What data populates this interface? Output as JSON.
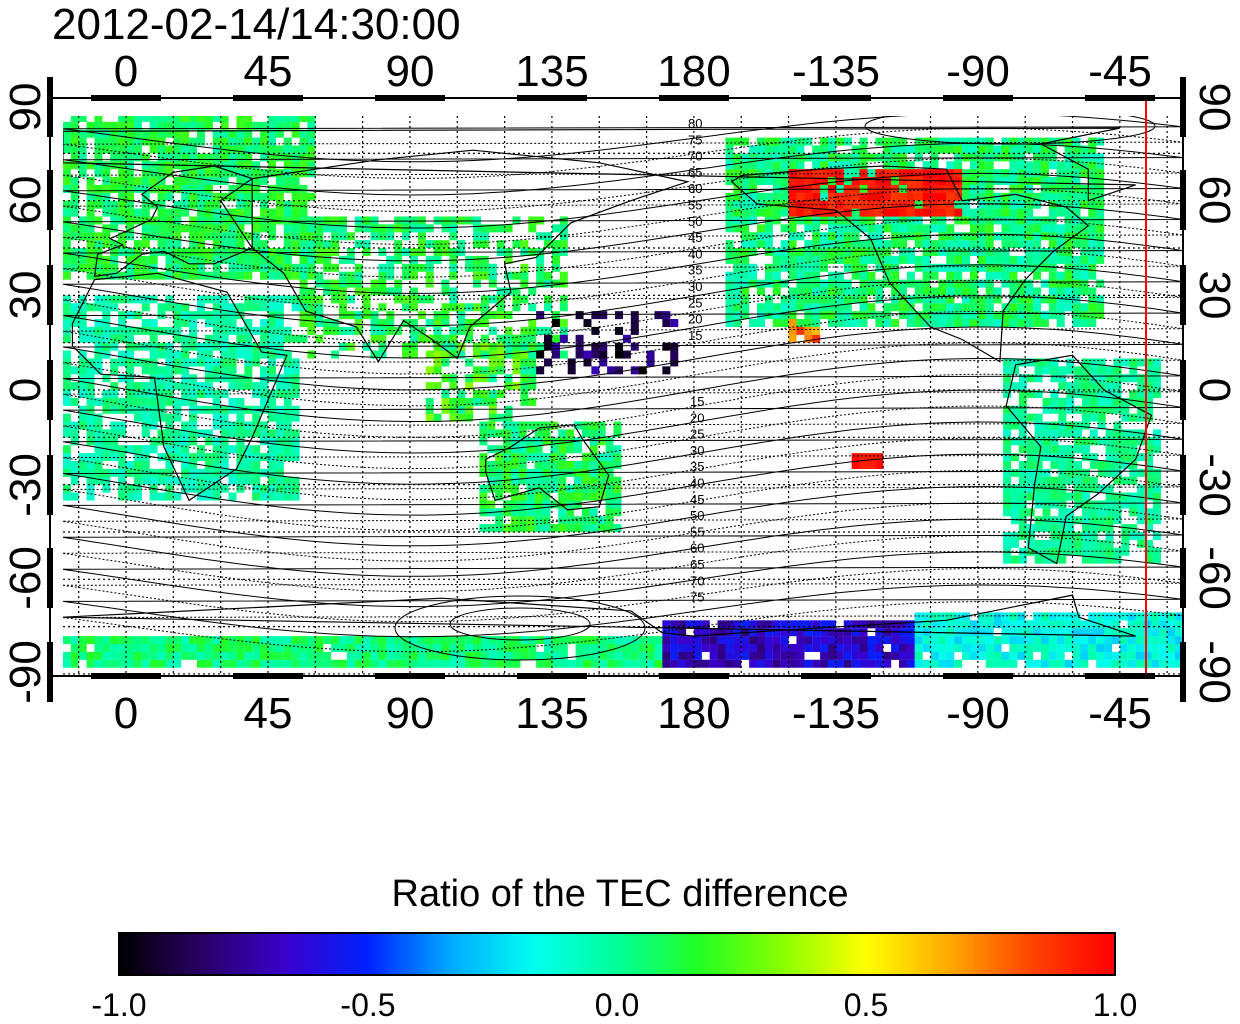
{
  "timestamp": "2012-02-14/14:30:00",
  "colorbar": {
    "title": "Ratio of the TEC difference",
    "min": -1.0,
    "max": 1.0,
    "tick_labels": [
      "-1.0",
      "-0.5",
      "0.0",
      "0.5",
      "1.0"
    ],
    "colors": [
      "#000000",
      "#2a0066",
      "#3a00cc",
      "#0022ff",
      "#00aaff",
      "#00ffee",
      "#00ff99",
      "#22ff22",
      "#88ff00",
      "#ffff00",
      "#ffaa00",
      "#ff4400",
      "#ff0000"
    ]
  },
  "map": {
    "projection": "equirectangular",
    "lon_tick_labels": [
      "0",
      "45",
      "90",
      "135",
      "180",
      "-135",
      "-90",
      "-45"
    ],
    "lat_tick_labels": [
      "90",
      "60",
      "30",
      "0",
      "-30",
      "-60",
      "-90"
    ],
    "contour_labels_north": [
      "80",
      "75",
      "70",
      "65",
      "60",
      "55",
      "50",
      "45",
      "40",
      "35",
      "30",
      "25",
      "20",
      "15"
    ],
    "contour_labels_south": [
      "15",
      "20",
      "25",
      "30",
      "35",
      "40",
      "45",
      "50",
      "55",
      "60",
      "65",
      "70",
      "75"
    ],
    "marker_line_longitude": -39,
    "marker_line_color": "#ff0000"
  }
}
